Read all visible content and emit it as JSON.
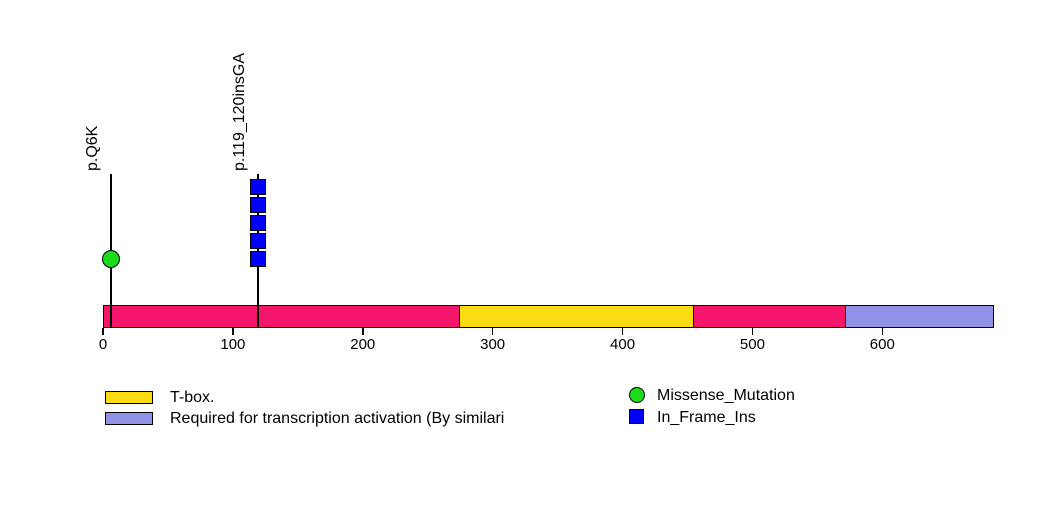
{
  "chart_data": {
    "type": "lollipop",
    "title": "",
    "xlabel": "",
    "ylabel": "",
    "xlim": [
      0,
      686
    ],
    "x_ticks": [
      0,
      100,
      200,
      300,
      400,
      500,
      600
    ],
    "grid": false,
    "protein": {
      "length": 686,
      "track_color": "#F5156B"
    },
    "domains": [
      {
        "name": "T-box.",
        "start": 274,
        "end": 455,
        "color": "#FBDB11"
      },
      {
        "name": "Required for transcription activation (By similari",
        "start": 571,
        "end": 686,
        "color": "#9191E8"
      }
    ],
    "mutations": [
      {
        "label": "p.Q6K",
        "position": 6,
        "count": 1,
        "type": "Missense_Mutation",
        "marker": "circle",
        "color": "#1BDB1B"
      },
      {
        "label": "p.119_120insGA",
        "position": 119.5,
        "count": 5,
        "type": "In_Frame_Ins",
        "marker": "square",
        "color": "#0000FA"
      }
    ],
    "legend": {
      "position": "bottom",
      "domain_items": [
        {
          "label": "T-box.",
          "color": "#FBDB11"
        },
        {
          "label": "Required for transcription activation (By similari",
          "color": "#9191E8"
        }
      ],
      "mutation_items": [
        {
          "label": "Missense_Mutation",
          "marker": "circle",
          "color": "#1BDB1B"
        },
        {
          "label": "In_Frame_Ins",
          "marker": "square",
          "color": "#0000FA"
        }
      ]
    }
  }
}
